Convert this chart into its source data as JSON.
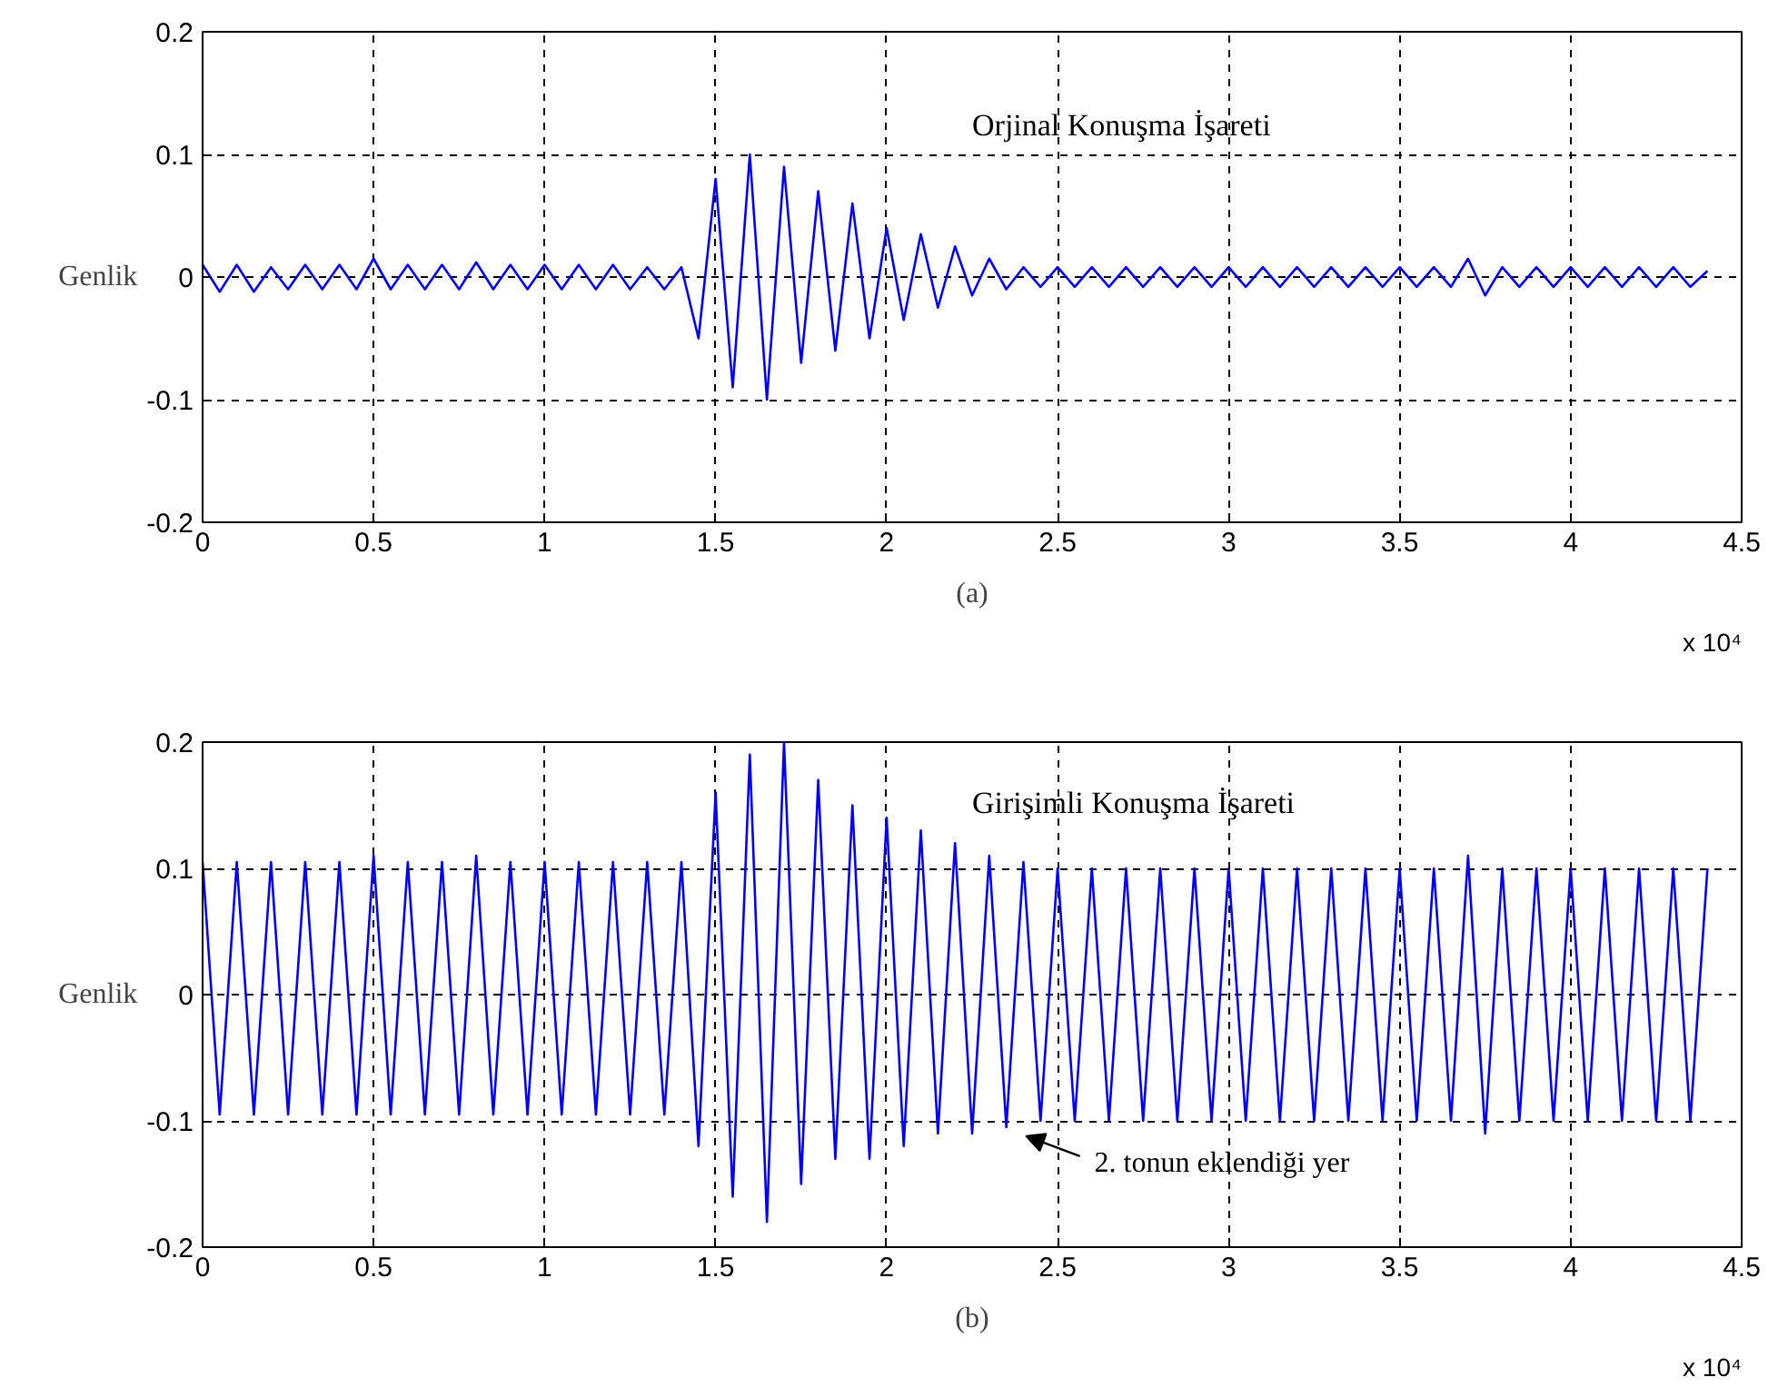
{
  "chart_data": [
    {
      "type": "line",
      "xlabel": "(a)",
      "ylabel": "Genlik",
      "xlim": [
        0,
        4.5
      ],
      "ylim": [
        -0.2,
        0.2
      ],
      "xticks": [
        0,
        0.5,
        1,
        1.5,
        2,
        2.5,
        3,
        3.5,
        4,
        4.5
      ],
      "yticks": [
        -0.2,
        -0.1,
        0,
        0.1,
        0.2
      ],
      "grid": true,
      "line_style": "solid",
      "annotations": [
        "Orjinal Konuşma İşareti",
        "x 10⁴"
      ],
      "series": [
        {
          "color": "#0000ff",
          "x": [
            0,
            0.05,
            0.1,
            0.15,
            0.2,
            0.25,
            0.3,
            0.35,
            0.4,
            0.45,
            0.5,
            0.55,
            0.6,
            0.65,
            0.7,
            0.75,
            0.8,
            0.85,
            0.9,
            0.95,
            1,
            1.05,
            1.1,
            1.15,
            1.2,
            1.25,
            1.3,
            1.35,
            1.4,
            1.45,
            1.5,
            1.55,
            1.6,
            1.65,
            1.7,
            1.75,
            1.8,
            1.85,
            1.9,
            1.95,
            2,
            2.05,
            2.1,
            2.15,
            2.2,
            2.25,
            2.3,
            2.35,
            2.4,
            2.45,
            2.5,
            2.55,
            2.6,
            2.65,
            2.7,
            2.75,
            2.8,
            2.85,
            2.9,
            2.95,
            3,
            3.05,
            3.1,
            3.15,
            3.2,
            3.25,
            3.3,
            3.35,
            3.4,
            3.45,
            3.5,
            3.55,
            3.6,
            3.65,
            3.7,
            3.75,
            3.8,
            3.85,
            3.9,
            3.95,
            4,
            4.05,
            4.1,
            4.15,
            4.2,
            4.25,
            4.3,
            4.35,
            4.4
          ],
          "values": [
            0.01,
            -0.012,
            0.01,
            -0.012,
            0.008,
            -0.01,
            0.01,
            -0.01,
            0.01,
            -0.01,
            0.015,
            -0.01,
            0.01,
            -0.01,
            0.01,
            -0.01,
            0.012,
            -0.01,
            0.01,
            -0.01,
            0.01,
            -0.01,
            0.01,
            -0.01,
            0.01,
            -0.01,
            0.008,
            -0.01,
            0.008,
            -0.05,
            0.08,
            -0.09,
            0.1,
            -0.1,
            0.09,
            -0.07,
            0.07,
            -0.06,
            0.06,
            -0.05,
            0.04,
            -0.035,
            0.035,
            -0.025,
            0.025,
            -0.015,
            0.015,
            -0.01,
            0.008,
            -0.008,
            0.008,
            -0.008,
            0.008,
            -0.008,
            0.008,
            -0.008,
            0.008,
            -0.008,
            0.008,
            -0.008,
            0.008,
            -0.008,
            0.008,
            -0.008,
            0.008,
            -0.008,
            0.008,
            -0.008,
            0.008,
            -0.008,
            0.008,
            -0.008,
            0.008,
            -0.008,
            0.015,
            -0.015,
            0.008,
            -0.008,
            0.008,
            -0.008,
            0.008,
            -0.008,
            0.008,
            -0.008,
            0.008,
            -0.008,
            0.008,
            -0.008,
            0.005
          ]
        }
      ]
    },
    {
      "type": "line",
      "xlabel": "(b)",
      "ylabel": "Genlik",
      "xlim": [
        0,
        4.5
      ],
      "ylim": [
        -0.2,
        0.2
      ],
      "xticks": [
        0,
        0.5,
        1,
        1.5,
        2,
        2.5,
        3,
        3.5,
        4,
        4.5
      ],
      "yticks": [
        -0.2,
        -0.1,
        0,
        0.1,
        0.2
      ],
      "grid": true,
      "line_style": "solid",
      "annotations": [
        "Girişimli Konuşma İşareti",
        "x 10⁴",
        "2. tonun eklendiği yer"
      ],
      "series": [
        {
          "color": "#0000ff",
          "x": [
            0,
            0.05,
            0.1,
            0.15,
            0.2,
            0.25,
            0.3,
            0.35,
            0.4,
            0.45,
            0.5,
            0.55,
            0.6,
            0.65,
            0.7,
            0.75,
            0.8,
            0.85,
            0.9,
            0.95,
            1,
            1.05,
            1.1,
            1.15,
            1.2,
            1.25,
            1.3,
            1.35,
            1.4,
            1.45,
            1.5,
            1.55,
            1.6,
            1.65,
            1.7,
            1.75,
            1.8,
            1.85,
            1.9,
            1.95,
            2,
            2.05,
            2.1,
            2.15,
            2.2,
            2.25,
            2.3,
            2.35,
            2.4,
            2.45,
            2.5,
            2.55,
            2.6,
            2.65,
            2.7,
            2.75,
            2.8,
            2.85,
            2.9,
            2.95,
            3,
            3.05,
            3.1,
            3.15,
            3.2,
            3.25,
            3.3,
            3.35,
            3.4,
            3.45,
            3.5,
            3.55,
            3.6,
            3.65,
            3.7,
            3.75,
            3.8,
            3.85,
            3.9,
            3.95,
            4,
            4.05,
            4.1,
            4.15,
            4.2,
            4.25,
            4.3,
            4.35,
            4.4
          ],
          "values": [
            0.105,
            -0.095,
            0.105,
            -0.095,
            0.105,
            -0.095,
            0.105,
            -0.095,
            0.105,
            -0.095,
            0.11,
            -0.095,
            0.105,
            -0.095,
            0.105,
            -0.095,
            0.11,
            -0.095,
            0.105,
            -0.095,
            0.105,
            -0.095,
            0.105,
            -0.095,
            0.105,
            -0.095,
            0.105,
            -0.095,
            0.105,
            -0.12,
            0.16,
            -0.16,
            0.19,
            -0.18,
            0.2,
            -0.15,
            0.17,
            -0.13,
            0.15,
            -0.13,
            0.14,
            -0.12,
            0.13,
            -0.11,
            0.12,
            -0.11,
            0.11,
            -0.105,
            0.105,
            -0.1,
            0.1,
            -0.1,
            0.1,
            -0.1,
            0.1,
            -0.1,
            0.1,
            -0.1,
            0.1,
            -0.1,
            0.1,
            -0.1,
            0.1,
            -0.1,
            0.1,
            -0.1,
            0.1,
            -0.1,
            0.1,
            -0.1,
            0.1,
            -0.1,
            0.1,
            -0.1,
            0.11,
            -0.11,
            0.1,
            -0.1,
            0.1,
            -0.1,
            0.1,
            -0.1,
            0.1,
            -0.1,
            0.1,
            -0.1,
            0.1,
            -0.1,
            0.1
          ]
        }
      ]
    }
  ]
}
